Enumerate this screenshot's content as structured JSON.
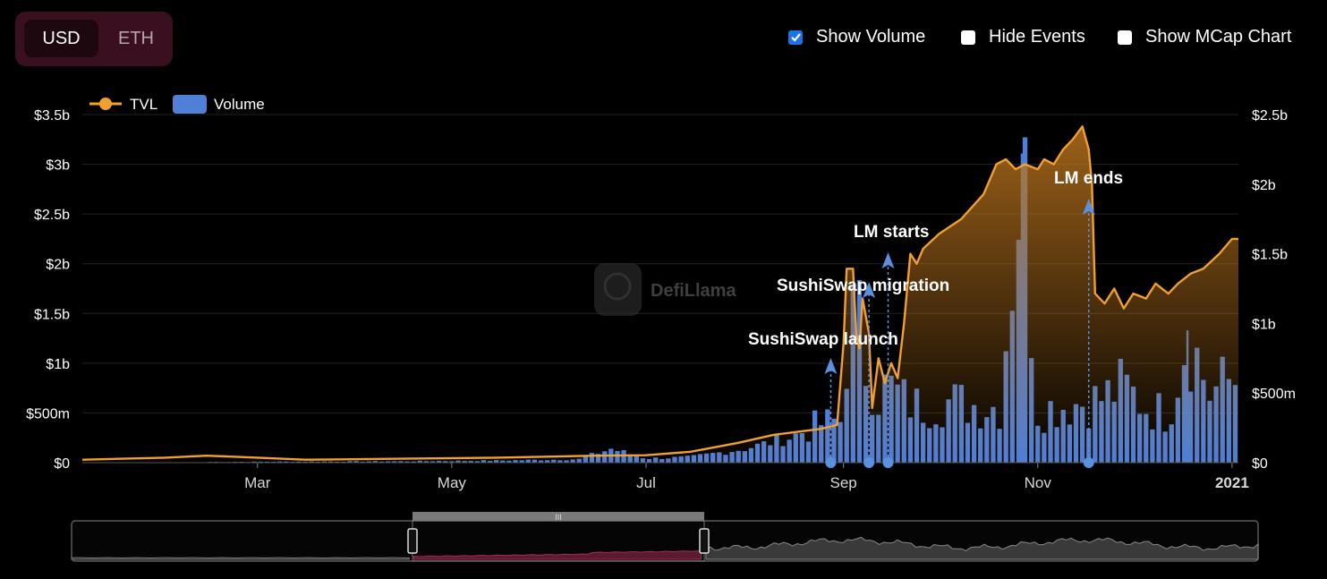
{
  "denomination": {
    "options": [
      "USD",
      "ETH"
    ],
    "selected": "USD"
  },
  "toggles": [
    {
      "label": "Show Volume",
      "checked": true
    },
    {
      "label": "Hide Events",
      "checked": false
    },
    {
      "label": "Show MCap Chart",
      "checked": false
    }
  ],
  "watermark": "DefiLlama",
  "colors": {
    "tvl": "#f0a030",
    "volume": "#4f7fd6",
    "event": "#5b8fe0",
    "brush_selected": "#5a1a30",
    "toggle_bg": "#3a0f1f"
  },
  "chart_data": {
    "type": "line",
    "legend": [
      "TVL",
      "Volume"
    ],
    "legend_position": "top-left",
    "x_ticks": [
      "Mar",
      "May",
      "Jul",
      "Sep",
      "Nov",
      "2021"
    ],
    "y_left_ticks": [
      "$0",
      "$500m",
      "$1b",
      "$1.5b",
      "$2b",
      "$2.5b",
      "$3b",
      "$3.5b"
    ],
    "y_right_ticks": [
      "$0",
      "$500m",
      "$1b",
      "$1.5b",
      "$2b",
      "$2.5b"
    ],
    "y_left_range": [
      0,
      3500000000
    ],
    "y_right_range": [
      0,
      2500000000
    ],
    "x_range": [
      "2020-01-06",
      "2021-01-03"
    ],
    "grid": true,
    "series": [
      {
        "name": "TVL",
        "axis": "left",
        "points": [
          [
            "2020-01-06",
            30000000
          ],
          [
            "2020-02-01",
            50000000
          ],
          [
            "2020-02-14",
            70000000
          ],
          [
            "2020-03-01",
            50000000
          ],
          [
            "2020-03-16",
            30000000
          ],
          [
            "2020-04-15",
            40000000
          ],
          [
            "2020-05-15",
            50000000
          ],
          [
            "2020-06-15",
            70000000
          ],
          [
            "2020-07-01",
            75000000
          ],
          [
            "2020-07-15",
            110000000
          ],
          [
            "2020-07-30",
            200000000
          ],
          [
            "2020-08-10",
            280000000
          ],
          [
            "2020-08-25",
            340000000
          ],
          [
            "2020-08-30",
            380000000
          ],
          [
            "2020-09-01",
            1200000000
          ],
          [
            "2020-09-02",
            1950000000
          ],
          [
            "2020-09-04",
            1950000000
          ],
          [
            "2020-09-05",
            1300000000
          ],
          [
            "2020-09-06",
            1150000000
          ],
          [
            "2020-09-07",
            1650000000
          ],
          [
            "2020-09-09",
            1300000000
          ],
          [
            "2020-09-10",
            550000000
          ],
          [
            "2020-09-12",
            1050000000
          ],
          [
            "2020-09-14",
            800000000
          ],
          [
            "2020-09-16",
            1000000000
          ],
          [
            "2020-09-18",
            850000000
          ],
          [
            "2020-09-20",
            1400000000
          ],
          [
            "2020-09-22",
            2100000000
          ],
          [
            "2020-09-24",
            2000000000
          ],
          [
            "2020-09-26",
            2150000000
          ],
          [
            "2020-10-01",
            2300000000
          ],
          [
            "2020-10-08",
            2450000000
          ],
          [
            "2020-10-15",
            2700000000
          ],
          [
            "2020-10-19",
            3000000000
          ],
          [
            "2020-10-22",
            3050000000
          ],
          [
            "2020-10-25",
            2950000000
          ],
          [
            "2020-10-28",
            3000000000
          ],
          [
            "2020-11-01",
            2950000000
          ],
          [
            "2020-11-03",
            3050000000
          ],
          [
            "2020-11-06",
            3000000000
          ],
          [
            "2020-11-09",
            3150000000
          ],
          [
            "2020-11-12",
            3250000000
          ],
          [
            "2020-11-15",
            3380000000
          ],
          [
            "2020-11-17",
            3150000000
          ],
          [
            "2020-11-18",
            2800000000
          ],
          [
            "2020-11-19",
            1700000000
          ],
          [
            "2020-11-22",
            1600000000
          ],
          [
            "2020-11-25",
            1750000000
          ],
          [
            "2020-11-28",
            1550000000
          ],
          [
            "2020-12-01",
            1700000000
          ],
          [
            "2020-12-05",
            1650000000
          ],
          [
            "2020-12-08",
            1800000000
          ],
          [
            "2020-12-12",
            1700000000
          ],
          [
            "2020-12-15",
            1800000000
          ],
          [
            "2020-12-19",
            1900000000
          ],
          [
            "2020-12-23",
            1950000000
          ],
          [
            "2020-12-28",
            2100000000
          ],
          [
            "2021-01-01",
            2250000000
          ],
          [
            "2021-01-03",
            2250000000
          ]
        ]
      },
      {
        "name": "Volume",
        "axis": "right",
        "points": [
          [
            "2020-02-15",
            5000000
          ],
          [
            "2020-03-15",
            8000000
          ],
          [
            "2020-04-15",
            10000000
          ],
          [
            "2020-05-15",
            15000000
          ],
          [
            "2020-06-10",
            25000000
          ],
          [
            "2020-06-20",
            100000000
          ],
          [
            "2020-07-01",
            30000000
          ],
          [
            "2020-07-15",
            40000000
          ],
          [
            "2020-08-01",
            100000000
          ],
          [
            "2020-08-15",
            180000000
          ],
          [
            "2020-08-25",
            280000000
          ],
          [
            "2020-08-31",
            300000000
          ],
          [
            "2020-09-02",
            800000000
          ],
          [
            "2020-09-05",
            1100000000
          ],
          [
            "2020-09-08",
            700000000
          ],
          [
            "2020-09-12",
            500000000
          ],
          [
            "2020-09-15",
            550000000
          ],
          [
            "2020-09-20",
            450000000
          ],
          [
            "2020-09-25",
            400000000
          ],
          [
            "2020-10-01",
            450000000
          ],
          [
            "2020-10-10",
            420000000
          ],
          [
            "2020-10-20",
            400000000
          ],
          [
            "2020-10-27",
            2220000000
          ],
          [
            "2020-11-01",
            380000000
          ],
          [
            "2020-11-10",
            420000000
          ],
          [
            "2020-11-20",
            450000000
          ],
          [
            "2020-11-28",
            550000000
          ],
          [
            "2020-12-05",
            400000000
          ],
          [
            "2020-12-12",
            350000000
          ],
          [
            "2020-12-18",
            950000000
          ],
          [
            "2020-12-25",
            500000000
          ],
          [
            "2021-01-01",
            600000000
          ]
        ]
      }
    ],
    "events": [
      {
        "date": "2020-08-28",
        "label": "SushiSwap launch"
      },
      {
        "date": "2020-09-09",
        "label": "SushiSwap migration"
      },
      {
        "date": "2020-09-15",
        "label": "LM starts"
      },
      {
        "date": "2020-11-17",
        "label": "LM ends"
      }
    ]
  }
}
